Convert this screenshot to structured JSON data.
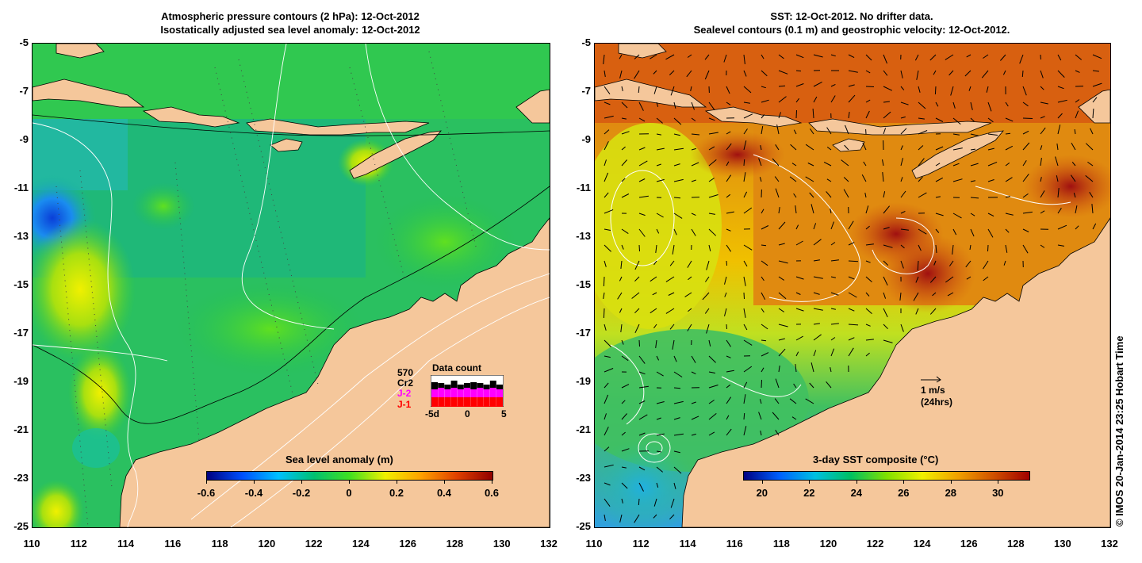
{
  "left_panel": {
    "title_line1": "Atmospheric pressure contours (2 hPa): 12-Oct-2012",
    "title_line2": "Isostatically adjusted sea level anomaly: 12-Oct-2012",
    "colorbar": {
      "label": "Sea level anomaly (m)",
      "ticks": [
        "-0.6",
        "-0.4",
        "-0.2",
        "0",
        "0.2",
        "0.4",
        "0.6"
      ],
      "min": -0.6,
      "max": 0.6,
      "colors": [
        "#000080",
        "#0050ff",
        "#00c0ff",
        "#00c070",
        "#40e020",
        "#f0f000",
        "#ffa000",
        "#e04000",
        "#900000"
      ]
    },
    "data_count": {
      "title": "Data count",
      "total": "570",
      "sat_cr2": "Cr2",
      "sat_j2": "J-2",
      "sat_j1": "J-1",
      "x_ticks": [
        "-5d",
        "0",
        "5"
      ],
      "j1_color": "#ff0000",
      "j2_color": "#ff00ff",
      "cr2_color": "#000000"
    }
  },
  "right_panel": {
    "title_line1": "SST: 12-Oct-2012. No drifter data.",
    "title_line2": "Sealevel contours (0.1 m) and geostrophic velocity: 12-Oct-2012.",
    "colorbar": {
      "label": "3-day SST composite (°C)",
      "ticks": [
        "20",
        "22",
        "24",
        "26",
        "28",
        "30"
      ],
      "min": 19.2,
      "max": 31.3,
      "colors": [
        "#000080",
        "#0060ff",
        "#00c0e0",
        "#00c060",
        "#80e000",
        "#f0f000",
        "#f0a000",
        "#d05000",
        "#a00000"
      ]
    },
    "scale_label": "1 m/s",
    "scale_sub": "(24hrs)"
  },
  "axes": {
    "lat_ticks": [
      "-5",
      "-7",
      "-9",
      "-11",
      "-13",
      "-15",
      "-17",
      "-19",
      "-21",
      "-23",
      "-25"
    ],
    "lon_ticks": [
      "110",
      "112",
      "114",
      "116",
      "118",
      "120",
      "122",
      "124",
      "126",
      "128",
      "130",
      "132"
    ]
  },
  "colors": {
    "land": "#f5c79b"
  },
  "credit": "© IMOS 20-Jan-2014 23:25 Hobart Time"
}
